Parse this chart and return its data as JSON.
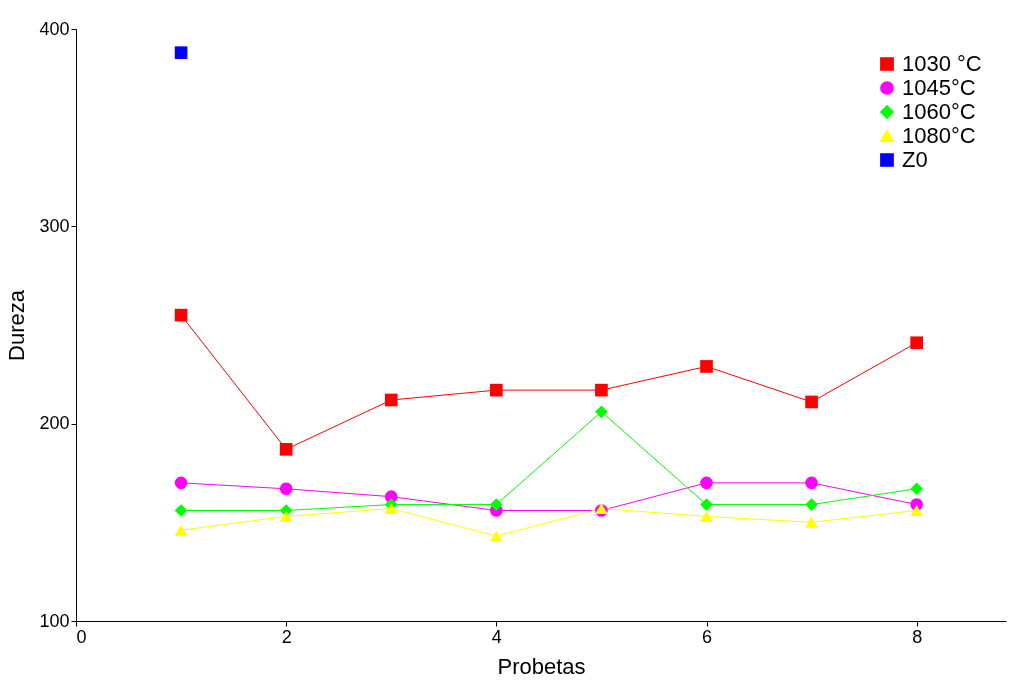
{
  "chart_data": {
    "type": "line",
    "xlabel": "Probetas",
    "ylabel": "Dureza",
    "x": [
      1,
      2,
      3,
      4,
      5,
      6,
      7,
      8
    ],
    "series": [
      {
        "name": "1030 °C",
        "color": "#ff0000",
        "marker": "square",
        "values": [
          255,
          187,
          212,
          217,
          217,
          229,
          211,
          241
        ]
      },
      {
        "name": "1045°C",
        "color": "#ff00ff",
        "marker": "circle",
        "values": [
          170,
          167,
          163,
          156,
          156,
          170,
          170,
          159
        ]
      },
      {
        "name": "1060°C",
        "color": "#00ff00",
        "marker": "diamond",
        "values": [
          156,
          156,
          159,
          159,
          206,
          159,
          159,
          167
        ]
      },
      {
        "name": "1080°C",
        "color": "#ffff00",
        "marker": "triangle",
        "values": [
          146,
          153,
          157,
          143,
          157,
          153,
          150,
          156
        ]
      },
      {
        "name": "Z0",
        "color": "#0000ff",
        "marker": "square",
        "x": [
          1
        ],
        "values": [
          388
        ]
      }
    ],
    "xlim": [
      0,
      8.85
    ],
    "ylim": [
      100,
      400
    ],
    "xticks": [
      0,
      2,
      4,
      6,
      8
    ],
    "yticks": [
      100,
      200,
      300,
      400
    ],
    "grid": false,
    "legend": "top right",
    "line_style": "solid"
  }
}
